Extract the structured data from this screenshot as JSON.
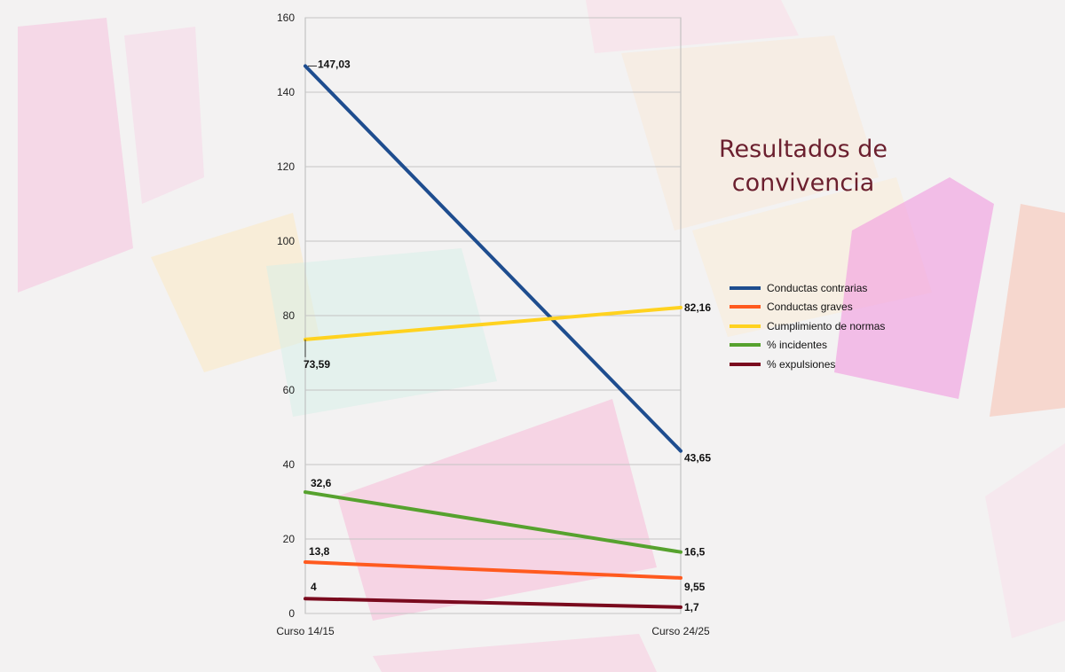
{
  "title": "Resultados de convivencia",
  "chart_data": {
    "type": "line",
    "title": "Resultados de convivencia",
    "categories": [
      "Curso 14/15",
      "Curso 24/25"
    ],
    "ylim": [
      0,
      160
    ],
    "yticks": [
      0,
      20,
      40,
      60,
      80,
      100,
      120,
      140,
      160
    ],
    "grid": true,
    "legend_position": "right",
    "series": [
      {
        "name": "Conductas contrarias",
        "values": [
          147.03,
          43.65
        ],
        "labels": [
          "147,03",
          "43,65"
        ],
        "color": "#1e4d8f"
      },
      {
        "name": "Conductas graves",
        "values": [
          13.8,
          9.55
        ],
        "labels": [
          "13,8",
          "9,55"
        ],
        "color": "#ff5a1f"
      },
      {
        "name": "Cumplimiento de normas",
        "values": [
          73.59,
          82.16
        ],
        "labels": [
          "73,59",
          "82,16"
        ],
        "color": "#ffd21f"
      },
      {
        "name": "% incidentes",
        "values": [
          32.6,
          16.5
        ],
        "labels": [
          "32,6",
          "16,5"
        ],
        "color": "#56a22e"
      },
      {
        "name": "% expulsiones",
        "values": [
          4,
          1.7
        ],
        "labels": [
          "4",
          "1,7"
        ],
        "color": "#7a0a1e"
      }
    ]
  }
}
